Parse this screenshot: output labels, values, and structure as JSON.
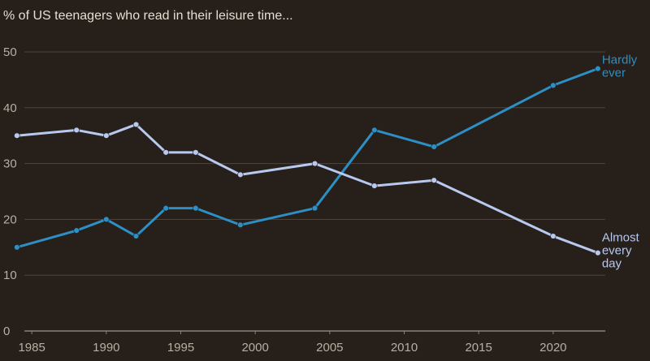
{
  "chart_data": {
    "type": "line",
    "title": "% of US teenagers who read in their leisure time...",
    "xlabel": "",
    "ylabel": "",
    "xlim": [
      1984.5,
      2023.5
    ],
    "ylim": [
      0,
      50
    ],
    "x_ticks": [
      1985,
      1990,
      1995,
      2000,
      2005,
      2010,
      2015,
      2020
    ],
    "y_ticks": [
      0,
      10,
      20,
      30,
      40,
      50
    ],
    "grid": true,
    "legend": "direct labels at line ends",
    "series": [
      {
        "name": "Hardly ever",
        "color": "#2d8fc4",
        "x": [
          1984,
          1988,
          1990,
          1992,
          1994,
          1996,
          1999,
          2004,
          2008,
          2012,
          2020,
          2023
        ],
        "values": [
          15,
          18,
          20,
          17,
          22,
          22,
          19,
          22,
          36,
          33,
          44,
          47
        ]
      },
      {
        "name": "Almost every day",
        "color": "#b8c9ef",
        "x": [
          1984,
          1988,
          1990,
          1992,
          1994,
          1996,
          1999,
          2004,
          2008,
          2012,
          2020,
          2023
        ],
        "values": [
          35,
          36,
          35,
          37,
          32,
          32,
          28,
          30,
          26,
          27,
          17,
          14
        ]
      }
    ],
    "annotations": [
      {
        "series": 0,
        "lines": [
          "Hardly",
          "ever"
        ]
      },
      {
        "series": 1,
        "lines": [
          "Almost",
          "every",
          "day"
        ]
      }
    ]
  }
}
